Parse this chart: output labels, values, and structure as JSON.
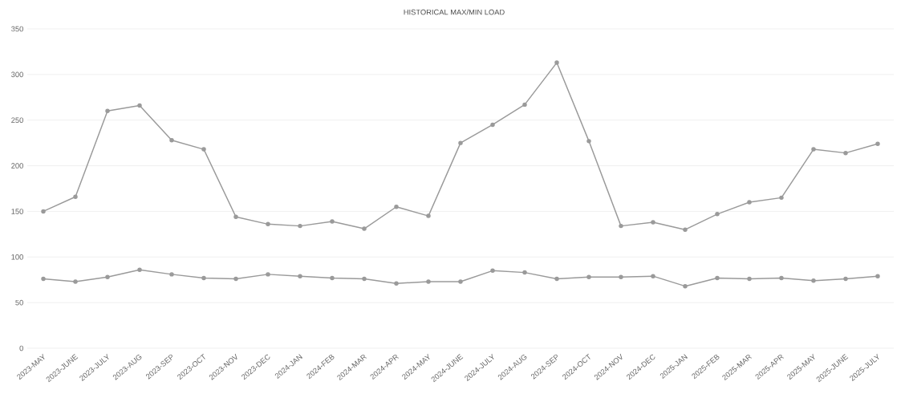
{
  "chart_data": {
    "type": "line",
    "title": "HISTORICAL MAX/MIN LOAD",
    "categories": [
      "2023-MAY",
      "2023-JUNE",
      "2023-JULY",
      "2023-AUG",
      "2023-SEP",
      "2023-OCT",
      "2023-NOV",
      "2023-DEC",
      "2024-JAN",
      "2024-FEB",
      "2024-MAR",
      "2024-APR",
      "2024-MAY",
      "2024-JUNE",
      "2024-JULY",
      "2024-AUG",
      "2024-SEP",
      "2024-OCT",
      "2024-NOV",
      "2024-DEC",
      "2025-JAN",
      "2025-FEB",
      "2025-MAR",
      "2025-APR",
      "2025-MAY",
      "2025-JUNE",
      "2025-JULY"
    ],
    "series": [
      {
        "color": "#9a9a9a",
        "values": [
          150,
          166,
          260,
          266,
          228,
          218,
          144,
          136,
          134,
          139,
          131,
          155,
          145,
          225,
          245,
          267,
          313,
          227,
          134,
          138,
          130,
          147,
          160,
          165,
          218,
          214,
          224
        ]
      },
      {
        "color": "#9a9a9a",
        "values": [
          76,
          73,
          78,
          86,
          81,
          77,
          76,
          81,
          79,
          77,
          76,
          71,
          73,
          73,
          85,
          83,
          76,
          78,
          78,
          79,
          68,
          77,
          76,
          77,
          74,
          76,
          79
        ]
      }
    ],
    "ylim": [
      0,
      350
    ],
    "yticks": [
      0,
      50,
      100,
      150,
      200,
      250,
      300,
      350
    ],
    "grid": "y",
    "marker": "circle",
    "line_style": "solid"
  }
}
